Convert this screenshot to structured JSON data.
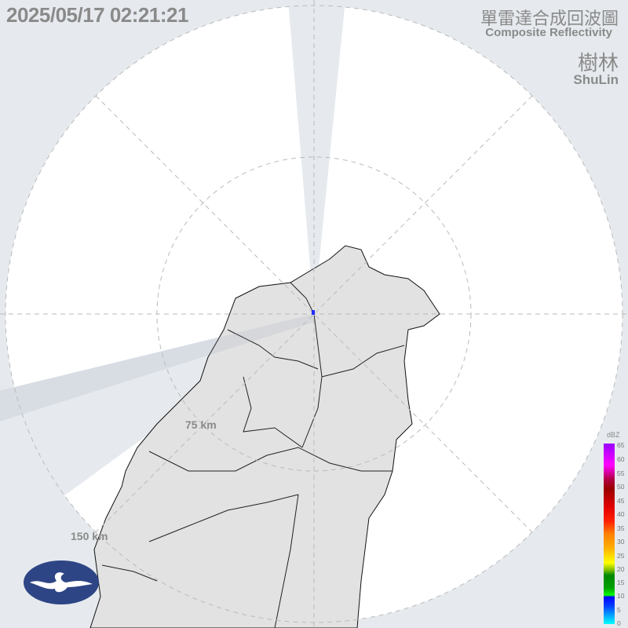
{
  "header": {
    "timestamp": "2025/05/17 02:21:21",
    "title_zh": "單雷達合成回波圖",
    "title_en": "Composite Reflectivity",
    "station_zh": "樹林",
    "station_en": "ShuLin"
  },
  "range_rings": {
    "inner": "75 km",
    "outer": "150 km"
  },
  "legend": {
    "unit": "dBZ",
    "ticks": [
      "65",
      "60",
      "55",
      "50",
      "45",
      "40",
      "35",
      "30",
      "25",
      "20",
      "15",
      "10",
      "5",
      "0"
    ]
  },
  "logo": {
    "name": "cwa-logo-icon",
    "color": "#2e4585"
  },
  "colors": {
    "background": "#e6eaee",
    "coverage": "#ffffff",
    "land": "#e2e2e2",
    "text": "#8a8a8a"
  }
}
